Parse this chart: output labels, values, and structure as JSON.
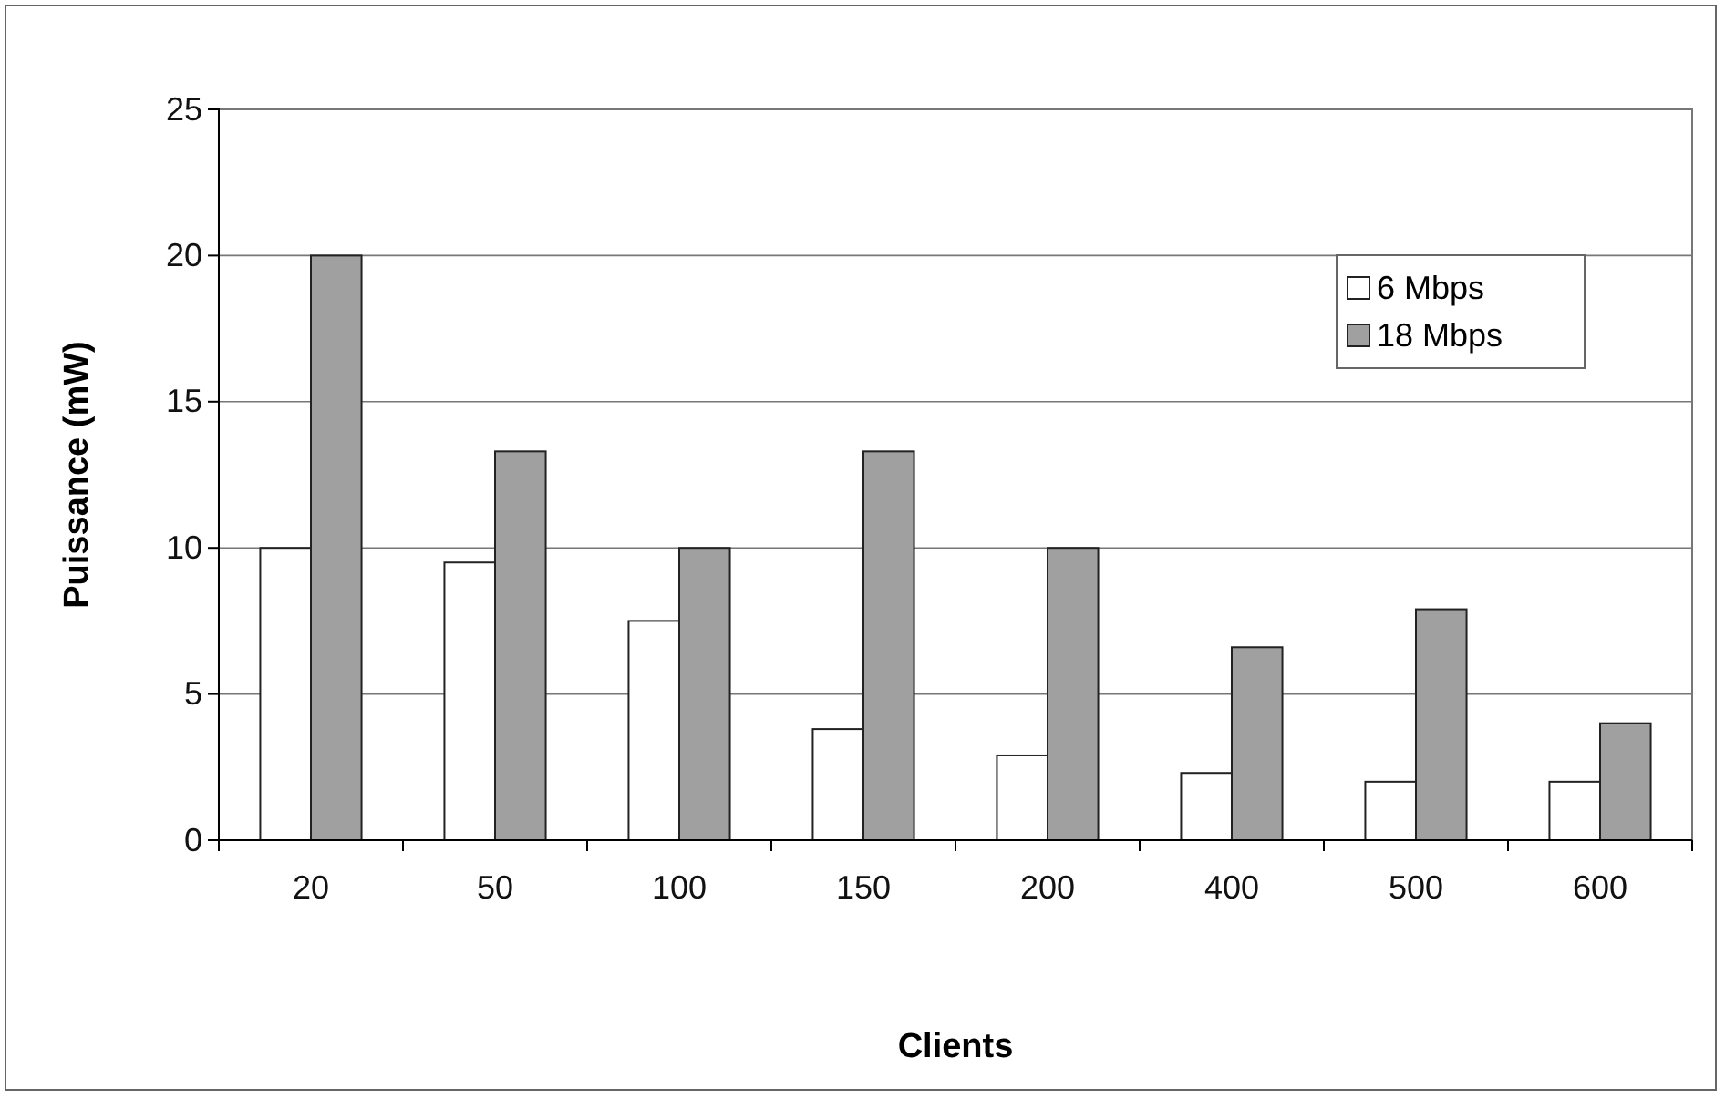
{
  "chart_data": {
    "type": "bar",
    "xlabel": "Clients",
    "ylabel": "Puissance (mW)",
    "categories": [
      "20",
      "50",
      "100",
      "150",
      "200",
      "400",
      "500",
      "600"
    ],
    "series": [
      {
        "name": "6 Mbps",
        "color": "#ffffff",
        "values": [
          10,
          9.5,
          7.5,
          3.8,
          2.9,
          2.3,
          2.0,
          2.0
        ]
      },
      {
        "name": "18 Mbps",
        "color": "#a0a0a0",
        "values": [
          20,
          13.3,
          10,
          13.3,
          10,
          6.6,
          7.9,
          4.0
        ]
      }
    ],
    "ylim": [
      0,
      25
    ],
    "yticks": [
      0,
      5,
      10,
      15,
      20,
      25
    ],
    "grid": "y",
    "legend": "top right"
  }
}
